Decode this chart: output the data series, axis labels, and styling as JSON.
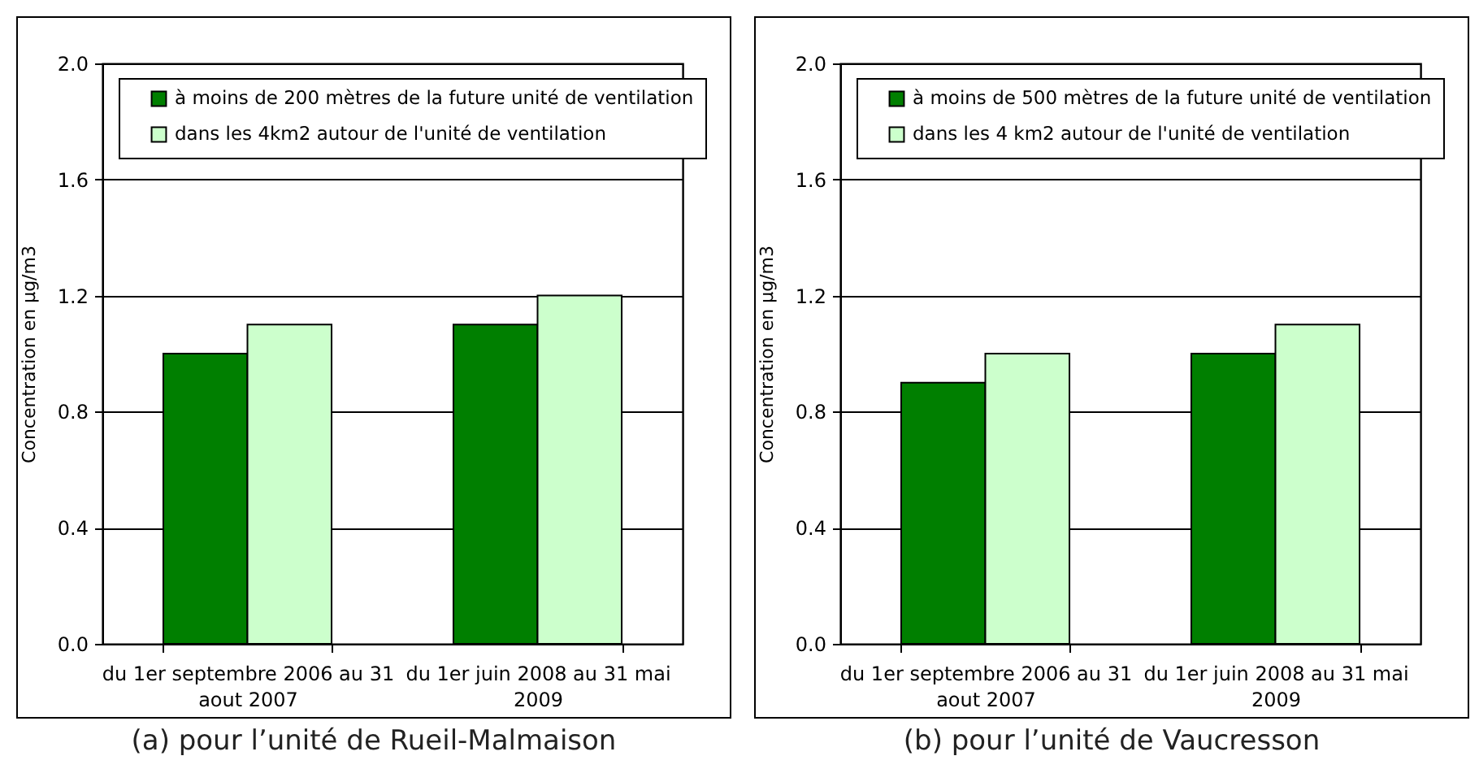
{
  "chart_data": [
    {
      "type": "bar",
      "title": "(a) pour l’unité de Rueil-Malmaison",
      "ylabel": "Concentration en µg/m3",
      "categories": [
        "du 1er septembre 2006 au 31 aout 2007",
        "du 1er juin 2008 au 31 mai 2009"
      ],
      "series": [
        {
          "name": "à moins de 200 mètres de la future unité de ventilation",
          "color": "#007f00",
          "values": [
            1.0,
            1.1
          ]
        },
        {
          "name": "dans les 4km2 autour de l'unité de ventilation",
          "color": "#ccffcc",
          "values": [
            1.1,
            1.2
          ]
        }
      ],
      "ylim": [
        0,
        2
      ],
      "yticks": [
        {
          "value": 0,
          "label": "0.0"
        },
        {
          "value": 0.4,
          "label": "0.4"
        },
        {
          "value": 0.8,
          "label": "0.8"
        },
        {
          "value": 1.2,
          "label": "1.2"
        },
        {
          "value": 1.6,
          "label": "1.6"
        },
        {
          "value": 2,
          "label": "2.0"
        }
      ],
      "grid": "y",
      "legend": "top"
    },
    {
      "type": "bar",
      "title": "(b) pour l’unité de Vaucresson",
      "ylabel": "Concentration en µg/m3",
      "categories": [
        "du 1er septembre 2006 au 31 aout 2007",
        "du 1er juin 2008 au 31 mai 2009"
      ],
      "series": [
        {
          "name": "à moins de 500 mètres de la future unité de ventilation",
          "color": "#007f00",
          "values": [
            0.9,
            1.0
          ]
        },
        {
          "name": "dans les 4 km2 autour de l'unité de ventilation",
          "color": "#ccffcc",
          "values": [
            1.0,
            1.1
          ]
        }
      ],
      "ylim": [
        0,
        2
      ],
      "yticks": [
        {
          "value": 0,
          "label": "0.0"
        },
        {
          "value": 0.4,
          "label": "0.4"
        },
        {
          "value": 0.8,
          "label": "0.8"
        },
        {
          "value": 1.2,
          "label": "1.2"
        },
        {
          "value": 1.6,
          "label": "1.6"
        },
        {
          "value": 2,
          "label": "2.0"
        }
      ],
      "grid": "y",
      "legend": "top"
    }
  ]
}
